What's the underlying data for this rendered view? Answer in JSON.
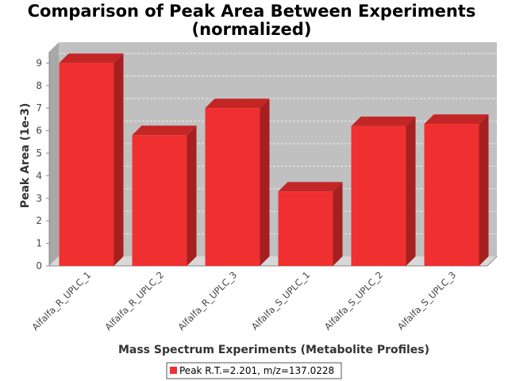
{
  "chart_data": {
    "type": "bar",
    "title_line1": "Comparison of Peak Area Between Experiments",
    "title_line2": "(normalized)",
    "xlabel": "Mass Spectrum Experiments (Metabolite Profiles)",
    "ylabel": "Peak Area (1e-3)",
    "categories": [
      "Alfalfa_R_UPLC_1",
      "Alfalfa_R_UPLC_2",
      "Alfalfa_R_UPLC_3",
      "Alfalfa_S_UPLC_1",
      "Alfalfa_S_UPLC_2",
      "Alfalfa_S_UPLC_3"
    ],
    "series": [
      {
        "name": "Peak R.T.=2.201, m/z=137.0228",
        "values": [
          9.0,
          5.8,
          7.0,
          3.3,
          6.2,
          6.3
        ]
      }
    ],
    "yticks": [
      "0",
      "1",
      "2",
      "3",
      "4",
      "5",
      "6",
      "7",
      "8",
      "9"
    ],
    "ylim": [
      0,
      9.5
    ],
    "grid": true,
    "legend_position": "bottom",
    "colors": {
      "bar_front": "#f03030",
      "bar_top": "#c42626",
      "bar_side": "#a52020",
      "plot_back": "#c0c0c0",
      "plot_floor": "#d8d8d8",
      "plot_wall": "#a8a8a8",
      "grid": "#ececec"
    }
  }
}
